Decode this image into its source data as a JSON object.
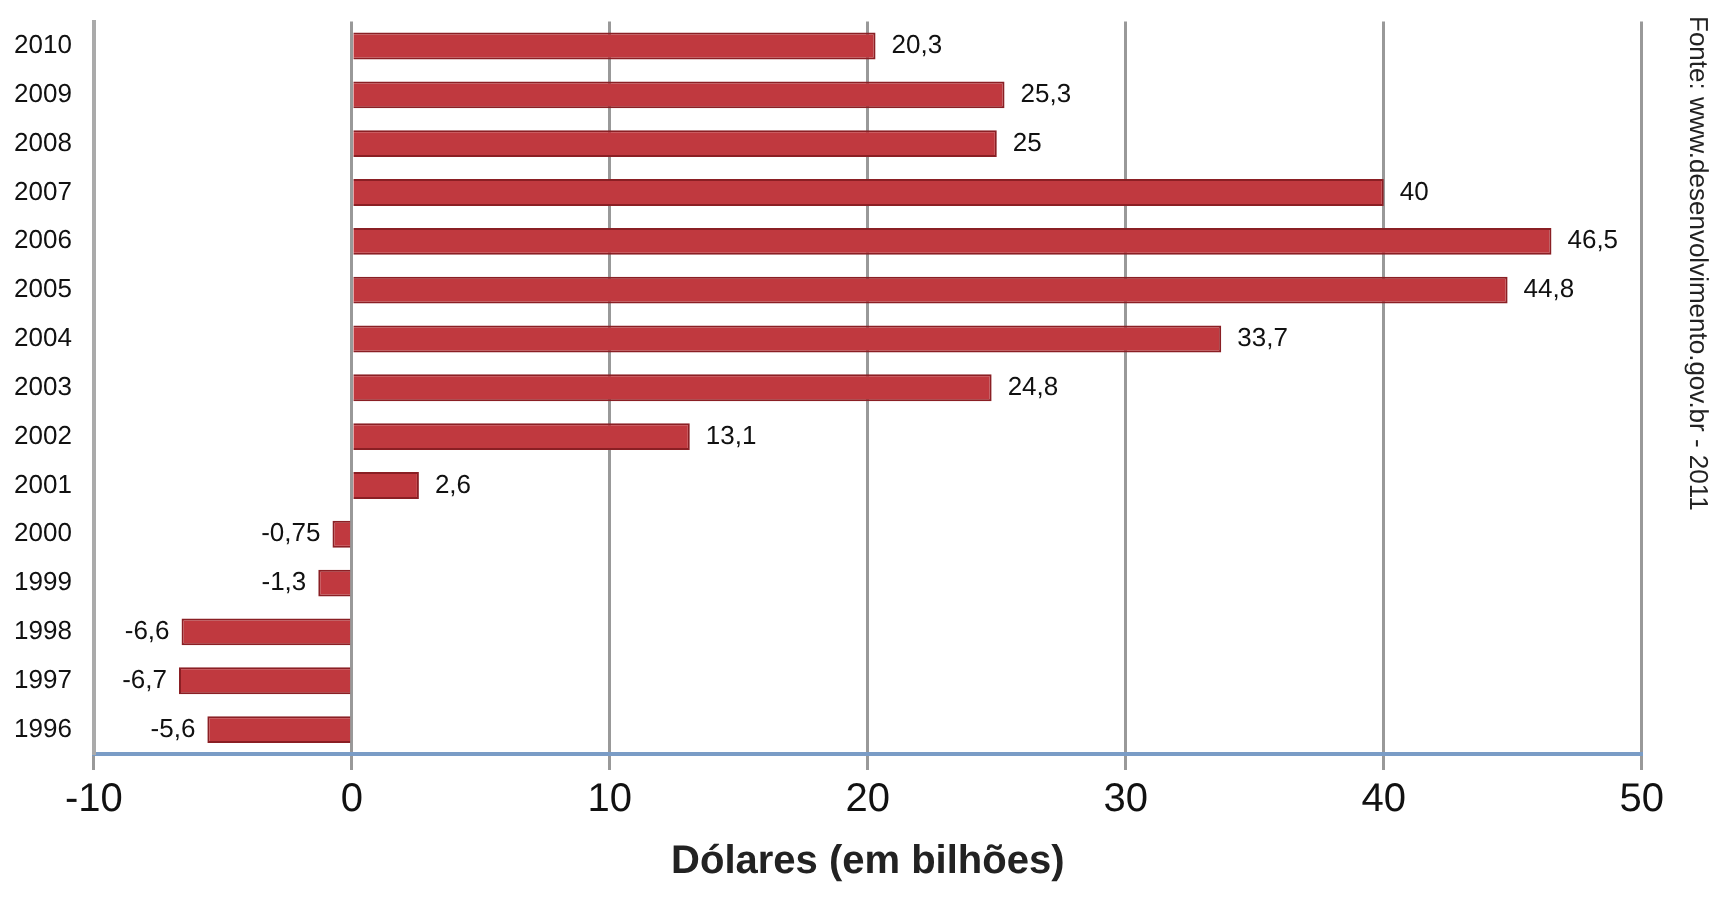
{
  "chart_data": {
    "type": "bar",
    "orientation": "horizontal",
    "xlabel": "Dólares (em bilhões)",
    "categories": [
      "2010",
      "2009",
      "2008",
      "2007",
      "2006",
      "2005",
      "2004",
      "2003",
      "2002",
      "2001",
      "2000",
      "1999",
      "1998",
      "1997",
      "1996"
    ],
    "values": [
      20.3,
      25.3,
      25,
      40,
      46.5,
      44.8,
      33.7,
      24.8,
      13.1,
      2.6,
      -0.75,
      -1.3,
      -6.6,
      -6.7,
      -5.6
    ],
    "color": "#c0393f",
    "xlim": [
      -10,
      50
    ],
    "xticks": [
      -10,
      0,
      10,
      20,
      30,
      40,
      50
    ],
    "grid": "x",
    "value_labels": [
      "20,3",
      "25,3",
      "25",
      "40",
      "46,5",
      "44,8",
      "33,7",
      "24,8",
      "13,1",
      "2,6",
      "-0,75",
      "-1,3",
      "-6,6",
      "-6,7",
      "-5,6"
    ],
    "annotations": [
      "Fonte: www.desenvolvimento.gov.br - 2011"
    ]
  }
}
